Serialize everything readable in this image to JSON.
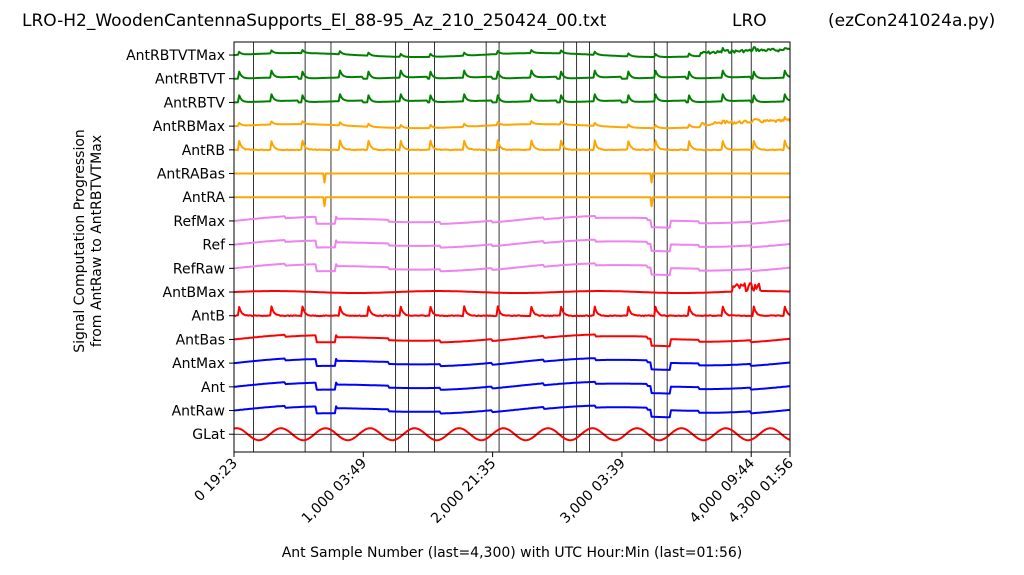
{
  "header": {
    "filename": "LRO-H2_WoodenCantennaSupports_El_88-95_Az_210_250424_00.txt",
    "station": "LRO",
    "program": "(ezCon241024a.py)"
  },
  "chart_data": {
    "type": "line",
    "title": "LRO-H2_WoodenCantennaSupports_El_88-95_Az_210_250424_00.txt",
    "ylabel_line1": "Signal Computation Progression",
    "ylabel_line2": "from AntRaw to AntRBTVTMax",
    "xlabel": "Ant Sample Number (last=4,300) with UTC Hour:Min (last=01:56)",
    "xlim": [
      0,
      4300
    ],
    "x_ticks": [
      {
        "x": 0,
        "label": "0  19:23"
      },
      {
        "x": 1000,
        "label": "1,000  03:49"
      },
      {
        "x": 2000,
        "label": "2,000  21:35"
      },
      {
        "x": 3000,
        "label": "3,000  03:39"
      },
      {
        "x": 4000,
        "label": "4,000  09:44"
      },
      {
        "x": 4300,
        "label": "4,300  01:56"
      }
    ],
    "vertical_markers": [
      150,
      550,
      750,
      1250,
      1350,
      1550,
      1950,
      2050,
      2550,
      2650,
      2750,
      3250,
      3350,
      3650,
      3850,
      4000
    ],
    "series": [
      {
        "name": "AntRBTVTMax",
        "color": "#008000",
        "style": "peaks_noisy_end"
      },
      {
        "name": "AntRBTVT",
        "color": "#008000",
        "style": "peaks_spike"
      },
      {
        "name": "AntRBTV",
        "color": "#008000",
        "style": "peaks_spike"
      },
      {
        "name": "AntRBMax",
        "color": "#ffa500",
        "style": "peaks_noisy_end"
      },
      {
        "name": "AntRB",
        "color": "#ffa500",
        "style": "peaks"
      },
      {
        "name": "AntRABas",
        "color": "#ffa500",
        "style": "flat_notch"
      },
      {
        "name": "AntRA",
        "color": "#ffa500",
        "style": "flat_notch"
      },
      {
        "name": "RefMax",
        "color": "#ee82ee",
        "style": "steps"
      },
      {
        "name": "Ref",
        "color": "#ee82ee",
        "style": "steps"
      },
      {
        "name": "RefRaw",
        "color": "#ee82ee",
        "style": "steps"
      },
      {
        "name": "AntBMax",
        "color": "#ff0000",
        "style": "flat_burst"
      },
      {
        "name": "AntB",
        "color": "#ff0000",
        "style": "peaks"
      },
      {
        "name": "AntBas",
        "color": "#ff0000",
        "style": "steps"
      },
      {
        "name": "AntMax",
        "color": "#0000ff",
        "style": "steps"
      },
      {
        "name": "Ant",
        "color": "#0000ff",
        "style": "steps"
      },
      {
        "name": "AntRaw",
        "color": "#0000ff",
        "style": "steps"
      },
      {
        "name": "GLat",
        "color": "#ff0000",
        "style": "sine",
        "cycles": 12.5
      }
    ]
  }
}
